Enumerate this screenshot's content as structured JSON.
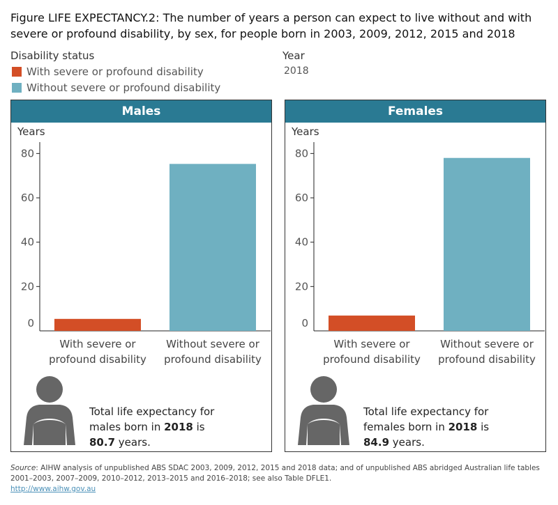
{
  "title": "Figure LIFE EXPECTANCY.2: The number of years a person can expect to live without and with severe or profound disability, by sex, for people born in 2003, 2009, 2012, 2015 and 2018",
  "legend": {
    "title": "Disability status",
    "items": [
      {
        "label": "With severe or profound disability",
        "color": "#d34e26"
      },
      {
        "label": "Without severe or profound disability",
        "color": "#6fb0c1"
      }
    ]
  },
  "year_filter": {
    "title": "Year",
    "value": "2018"
  },
  "chart_data": [
    {
      "type": "bar",
      "title": "Males",
      "ylabel": "Years",
      "ylim": [
        0,
        85
      ],
      "yticks": [
        0,
        20,
        40,
        60,
        80
      ],
      "categories": [
        "With severe or profound disability",
        "Without severe or profound disability"
      ],
      "category_lines": [
        [
          "With severe or",
          "profound disability"
        ],
        [
          "Without severe or",
          "profound disability"
        ]
      ],
      "values": [
        5.4,
        75.3
      ],
      "colors": [
        "#d34e26",
        "#6fb0c1"
      ],
      "grid": false,
      "note": {
        "pre": "Total life expectancy for males born in ",
        "year": "2018",
        "mid": " is ",
        "total": "80.7",
        "post": " years."
      }
    },
    {
      "type": "bar",
      "title": "Females",
      "ylabel": "Years",
      "ylim": [
        0,
        85
      ],
      "yticks": [
        0,
        20,
        40,
        60,
        80
      ],
      "categories": [
        "With severe or profound disability",
        "Without severe or profound disability"
      ],
      "category_lines": [
        [
          "With severe or",
          "profound disability"
        ],
        [
          "Without severe or",
          "profound disability"
        ]
      ],
      "values": [
        6.9,
        78.0
      ],
      "colors": [
        "#d34e26",
        "#6fb0c1"
      ],
      "grid": false,
      "note": {
        "pre": "Total life expectancy for females born in ",
        "year": "2018",
        "mid": " is ",
        "total": "84.9",
        "post": " years."
      }
    }
  ],
  "source": {
    "label": "Source",
    "text": ": AIHW analysis of unpublished ABS SDAC 2003, 2009, 2012, 2015 and 2018 data; and of unpublished ABS abridged Australian life tables 2001–2003, 2007–2009, 2010–2012, 2013–2015 and 2016–2018; see also Table DFLE1.",
    "link": "http://www.aihw.gov.au"
  }
}
